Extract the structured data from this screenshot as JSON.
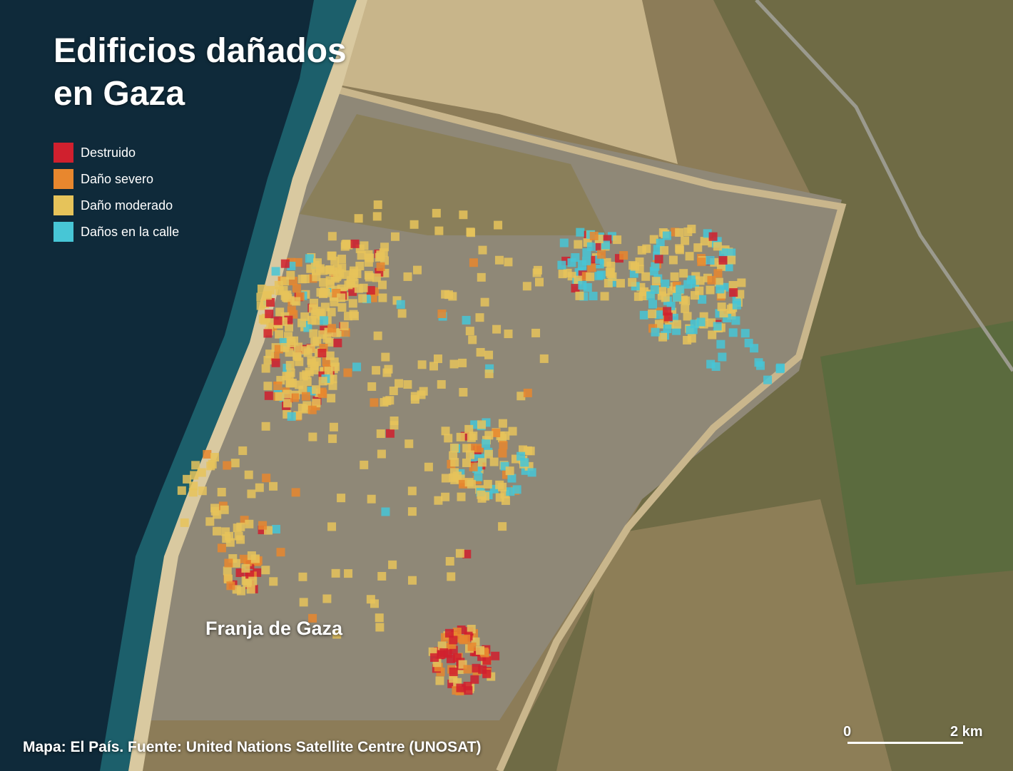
{
  "title": "Edificios dañados en Gaza",
  "legend": [
    {
      "label": "Destruido",
      "color": "#d0202e"
    },
    {
      "label": "Daño severo",
      "color": "#e8872e"
    },
    {
      "label": "Daño moderado",
      "color": "#e6c35a"
    },
    {
      "label": "Daños en la calle",
      "color": "#47c6d6"
    }
  ],
  "place_label": "Franja de Gaza",
  "source": "Mapa: El País. Fuente: United Nations Satellite Centre (UNOSAT)",
  "scale_bar": {
    "start": 0,
    "end": "2 km"
  }
}
